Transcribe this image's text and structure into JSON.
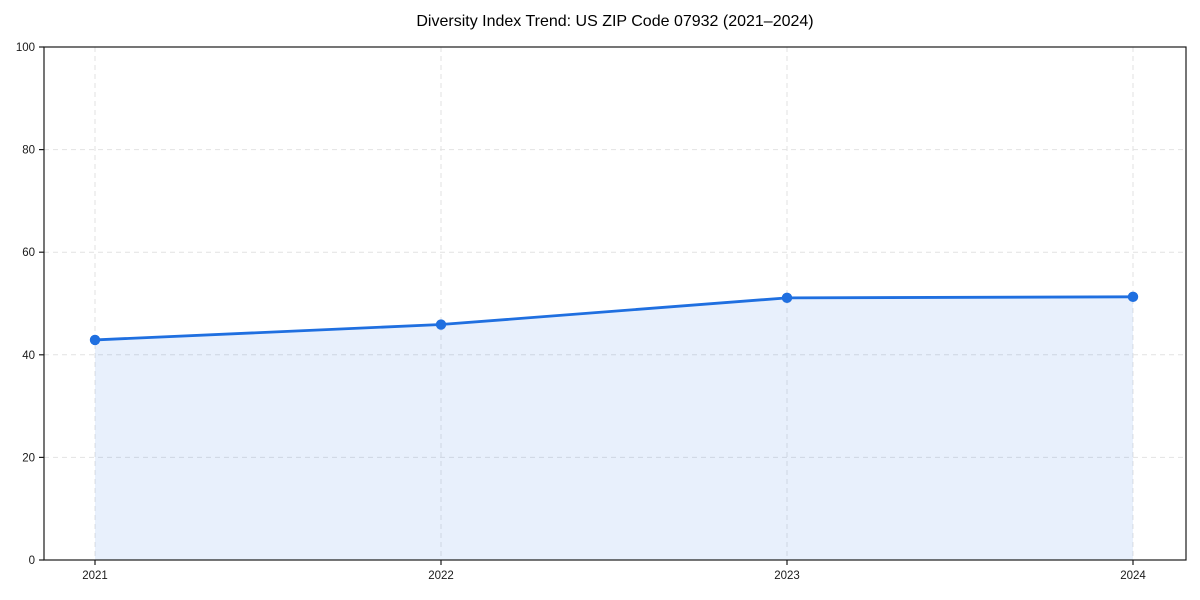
{
  "figure": {
    "title": "Diversity Index Trend: US ZIP Code 07932 (2021–2024)"
  },
  "chart_data": {
    "type": "area",
    "title": "Diversity Index Trend: US ZIP Code 07932 (2021–2024)",
    "categories": [
      "2021",
      "2022",
      "2023",
      "2024"
    ],
    "series": [
      {
        "name": "Diversity Index",
        "values": [
          42.9,
          45.9,
          51.1,
          51.3
        ]
      }
    ],
    "xlabel": "",
    "ylabel": "",
    "ylim": [
      0,
      100
    ],
    "yticks": [
      0,
      20,
      40,
      60,
      80,
      100
    ],
    "grid": true,
    "grid_style": "dashed",
    "legend": false,
    "colors": {
      "line": "#1f6fe0",
      "marker": "#1f6fe0",
      "fill": "rgba(31,111,224,0.10)",
      "grid": "#e2e2e2",
      "spine": "#1a1a1a",
      "tick_label": "#1a1a1a",
      "title": "#000000"
    }
  }
}
